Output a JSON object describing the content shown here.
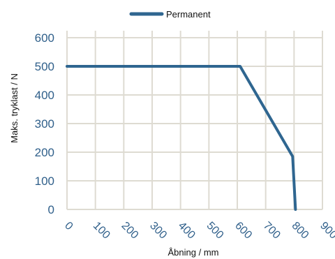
{
  "chart_data": {
    "type": "line",
    "title": "",
    "xlabel": "Åbning / mm",
    "ylabel": "Maks. tryklast / N",
    "xlim": [
      0,
      900
    ],
    "ylim": [
      0,
      600
    ],
    "x_ticks": [
      0,
      100,
      200,
      300,
      400,
      500,
      600,
      700,
      800,
      900
    ],
    "y_ticks": [
      0,
      100,
      200,
      300,
      400,
      500,
      600
    ],
    "grid": true,
    "legend": "top-center",
    "series": [
      {
        "name": "Permanent",
        "color": "#2f6690",
        "x": [
          0,
          610,
          795,
          805
        ],
        "y": [
          500,
          500,
          185,
          0
        ]
      }
    ]
  }
}
